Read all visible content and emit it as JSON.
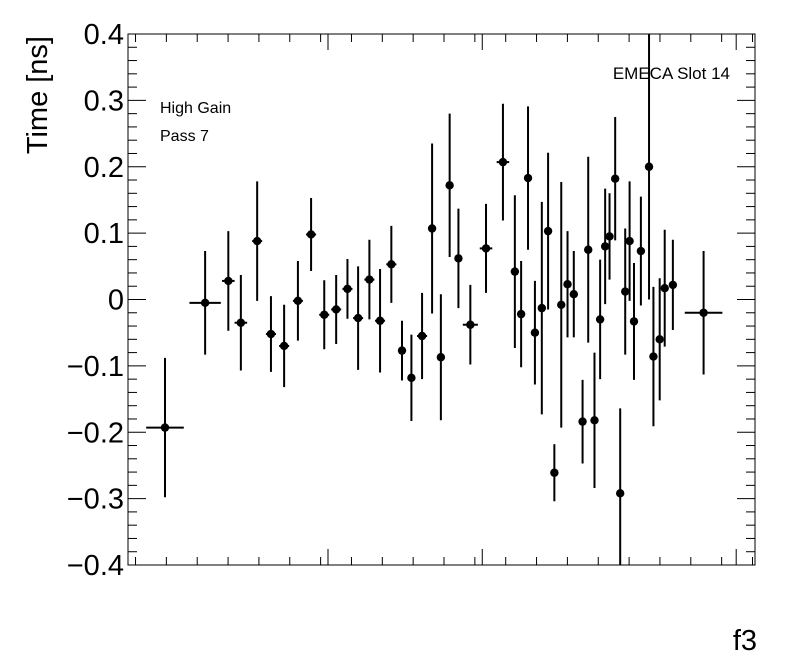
{
  "chart_data": {
    "type": "scatter",
    "ylabel": "Time [ns]",
    "xlabel": "f3",
    "annotations": [
      "EMECA Slot 14",
      "High Gain",
      "Pass 7"
    ],
    "ylim": [
      -0.4,
      0.4
    ],
    "xlim": [
      0,
      1
    ],
    "yticks": [
      "0.4",
      "0.3",
      "0.2",
      "0.1",
      "0",
      "−0.1",
      "−0.2",
      "−0.3",
      "−0.4"
    ],
    "grid": false,
    "series": [
      {
        "points": [
          {
            "x": 0.059,
            "y": -0.193,
            "xerr": 0.03,
            "yerr": 0.105
          },
          {
            "x": 0.123,
            "y": -0.005,
            "xerr": 0.025,
            "yerr": 0.078
          },
          {
            "x": 0.16,
            "y": 0.028,
            "xerr": 0.01,
            "yerr": 0.075
          },
          {
            "x": 0.18,
            "y": -0.035,
            "xerr": 0.01,
            "yerr": 0.072
          },
          {
            "x": 0.206,
            "y": 0.088,
            "xerr": 0.008,
            "yerr": 0.09
          },
          {
            "x": 0.228,
            "y": -0.052,
            "xerr": 0.008,
            "yerr": 0.057
          },
          {
            "x": 0.249,
            "y": -0.07,
            "xerr": 0.008,
            "yerr": 0.062
          },
          {
            "x": 0.271,
            "y": -0.002,
            "xerr": 0.008,
            "yerr": 0.06
          },
          {
            "x": 0.292,
            "y": 0.098,
            "xerr": 0.008,
            "yerr": 0.055
          },
          {
            "x": 0.313,
            "y": -0.023,
            "xerr": 0.008,
            "yerr": 0.052
          },
          {
            "x": 0.332,
            "y": -0.015,
            "xerr": 0.008,
            "yerr": 0.052
          },
          {
            "x": 0.35,
            "y": 0.016,
            "xerr": 0.008,
            "yerr": 0.045
          },
          {
            "x": 0.367,
            "y": -0.028,
            "xerr": 0.008,
            "yerr": 0.078
          },
          {
            "x": 0.385,
            "y": 0.03,
            "xerr": 0.008,
            "yerr": 0.06
          },
          {
            "x": 0.402,
            "y": -0.032,
            "xerr": 0.008,
            "yerr": 0.078
          },
          {
            "x": 0.42,
            "y": 0.053,
            "xerr": 0.008,
            "yerr": 0.058
          },
          {
            "x": 0.437,
            "y": -0.077,
            "xerr": 0.006,
            "yerr": 0.045
          },
          {
            "x": 0.452,
            "y": -0.118,
            "xerr": 0.006,
            "yerr": 0.065
          },
          {
            "x": 0.469,
            "y": -0.055,
            "xerr": 0.008,
            "yerr": 0.065
          },
          {
            "x": 0.485,
            "y": 0.107,
            "xerr": 0.006,
            "yerr": 0.128
          },
          {
            "x": 0.499,
            "y": -0.087,
            "xerr": 0.006,
            "yerr": 0.095
          },
          {
            "x": 0.513,
            "y": 0.172,
            "xerr": 0.006,
            "yerr": 0.108
          },
          {
            "x": 0.527,
            "y": 0.062,
            "xerr": 0.006,
            "yerr": 0.075
          },
          {
            "x": 0.546,
            "y": -0.038,
            "xerr": 0.012,
            "yerr": 0.06
          },
          {
            "x": 0.571,
            "y": 0.077,
            "xerr": 0.01,
            "yerr": 0.067
          },
          {
            "x": 0.598,
            "y": 0.207,
            "xerr": 0.01,
            "yerr": 0.088
          },
          {
            "x": 0.617,
            "y": 0.042,
            "xerr": 0.006,
            "yerr": 0.115
          },
          {
            "x": 0.627,
            "y": -0.022,
            "xerr": 0.006,
            "yerr": 0.08
          },
          {
            "x": 0.638,
            "y": 0.183,
            "xerr": 0.006,
            "yerr": 0.108
          },
          {
            "x": 0.649,
            "y": -0.05,
            "xerr": 0.006,
            "yerr": 0.078
          },
          {
            "x": 0.66,
            "y": -0.013,
            "xerr": 0.006,
            "yerr": 0.16
          },
          {
            "x": 0.67,
            "y": 0.103,
            "xerr": 0.006,
            "yerr": 0.118
          },
          {
            "x": 0.68,
            "y": -0.261,
            "xerr": 0.006,
            "yerr": 0.043
          },
          {
            "x": 0.691,
            "y": -0.008,
            "xerr": 0.006,
            "yerr": 0.185
          },
          {
            "x": 0.701,
            "y": 0.023,
            "xerr": 0.006,
            "yerr": 0.08
          },
          {
            "x": 0.711,
            "y": 0.008,
            "xerr": 0.006,
            "yerr": 0.065
          },
          {
            "x": 0.725,
            "y": -0.184,
            "xerr": 0.006,
            "yerr": 0.063
          },
          {
            "x": 0.734,
            "y": 0.075,
            "xerr": 0.006,
            "yerr": 0.14
          },
          {
            "x": 0.744,
            "y": -0.182,
            "xerr": 0.006,
            "yerr": 0.102
          },
          {
            "x": 0.753,
            "y": -0.03,
            "xerr": 0.006,
            "yerr": 0.09
          },
          {
            "x": 0.761,
            "y": 0.08,
            "xerr": 0.006,
            "yerr": 0.087
          },
          {
            "x": 0.768,
            "y": 0.095,
            "xerr": 0.006,
            "yerr": 0.065
          },
          {
            "x": 0.777,
            "y": 0.182,
            "xerr": 0.006,
            "yerr": 0.093
          },
          {
            "x": 0.785,
            "y": -0.292,
            "xerr": 0.006,
            "yerr": 0.128
          },
          {
            "x": 0.793,
            "y": 0.012,
            "xerr": 0.006,
            "yerr": 0.095
          },
          {
            "x": 0.8,
            "y": 0.088,
            "xerr": 0.006,
            "yerr": 0.09
          },
          {
            "x": 0.807,
            "y": -0.033,
            "xerr": 0.006,
            "yerr": 0.088
          },
          {
            "x": 0.818,
            "y": 0.073,
            "xerr": 0.006,
            "yerr": 0.082
          },
          {
            "x": 0.831,
            "y": 0.2,
            "xerr": 0.006,
            "yerr": 0.2
          },
          {
            "x": 0.838,
            "y": -0.086,
            "xerr": 0.006,
            "yerr": 0.105
          },
          {
            "x": 0.848,
            "y": -0.06,
            "xerr": 0.006,
            "yerr": 0.092
          },
          {
            "x": 0.856,
            "y": 0.017,
            "xerr": 0.006,
            "yerr": 0.088
          },
          {
            "x": 0.869,
            "y": 0.022,
            "xerr": 0.006,
            "yerr": 0.068
          },
          {
            "x": 0.918,
            "y": -0.02,
            "xerr": 0.03,
            "yerr": 0.093
          }
        ]
      }
    ]
  }
}
